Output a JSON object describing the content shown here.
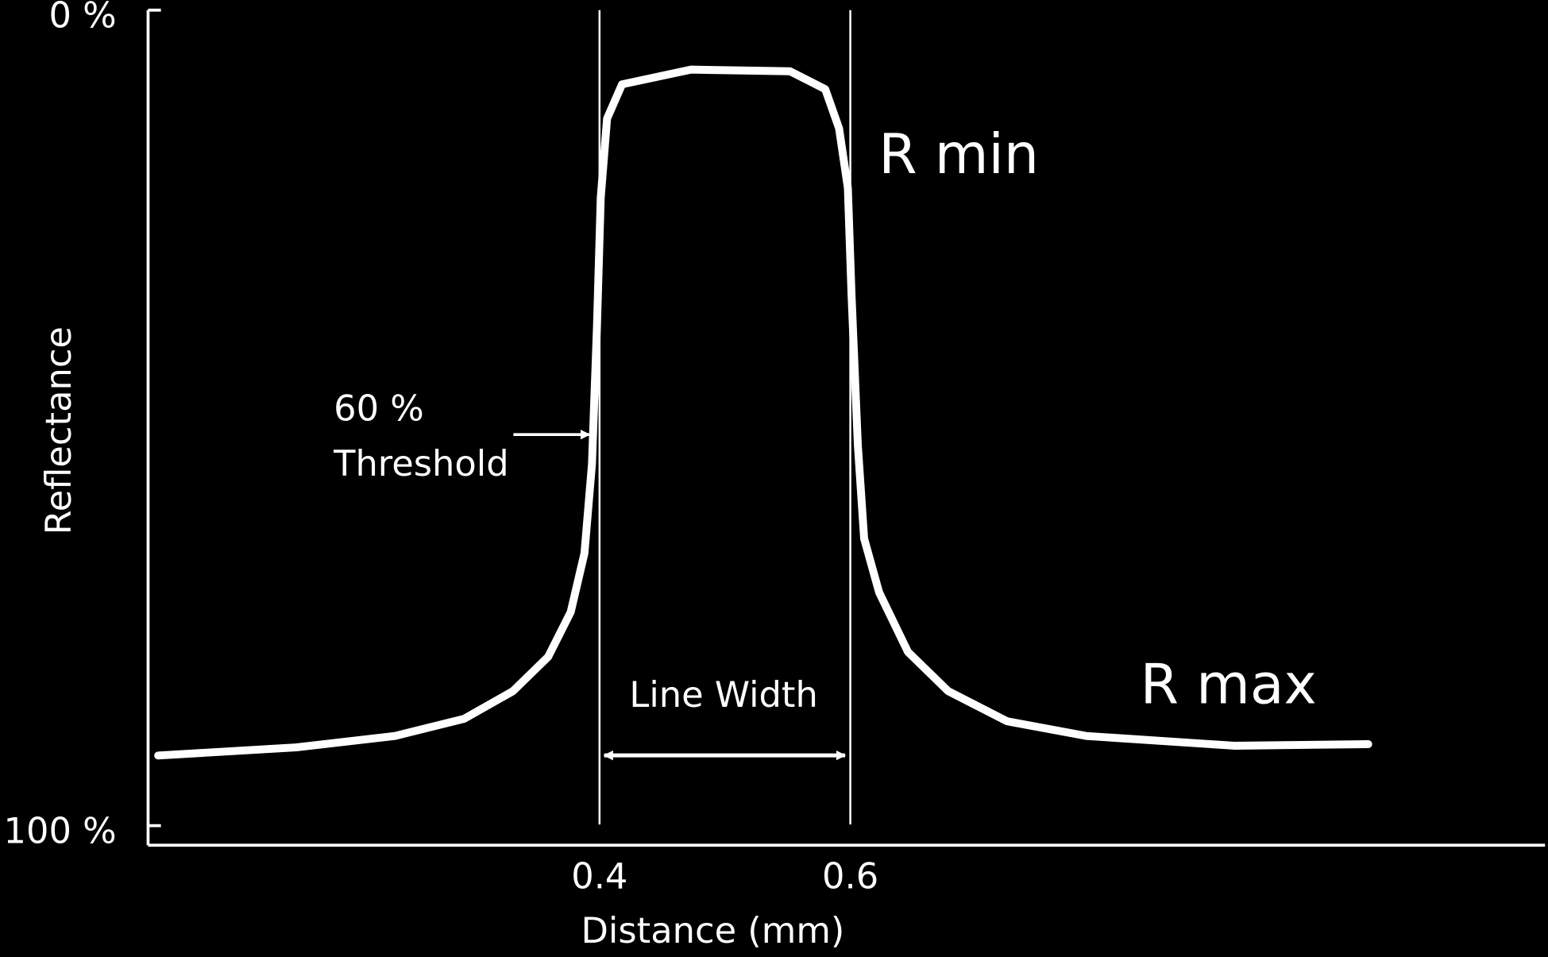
{
  "chart_data": {
    "type": "line",
    "x_label": "Distance (mm)",
    "y_label": "Reflectance",
    "x": [
      0.048,
      0.158,
      0.237,
      0.292,
      0.331,
      0.359,
      0.377,
      0.388,
      0.394,
      0.398,
      0.401,
      0.406,
      0.418,
      0.473,
      0.552,
      0.58,
      0.591,
      0.598,
      0.601,
      0.606,
      0.611,
      0.623,
      0.646,
      0.678,
      0.725,
      0.788,
      0.906,
      1.013
    ],
    "series": [
      {
        "color": "#ffffff",
        "values": [
          91.4,
          90.4,
          89.0,
          86.9,
          83.5,
          79.3,
          73.8,
          66.6,
          55.7,
          38.7,
          23.0,
          13.3,
          9.1,
          7.3,
          7.5,
          9.7,
          14.5,
          21.8,
          35.1,
          53.3,
          64.8,
          71.4,
          78.7,
          83.5,
          87.2,
          89.0,
          90.2,
          90.0
        ]
      }
    ],
    "xlim": [
      0.04,
      1.154
    ],
    "xticks": [
      0.4,
      0.6
    ],
    "ylim": [
      102.4,
      0
    ],
    "yticks": [
      {
        "value": 0,
        "label": "0 %"
      },
      {
        "value": 100,
        "label": "100 %"
      }
    ],
    "annotations": [
      "R min",
      "R max",
      "60 %",
      "Threshold",
      "Line Width"
    ]
  }
}
